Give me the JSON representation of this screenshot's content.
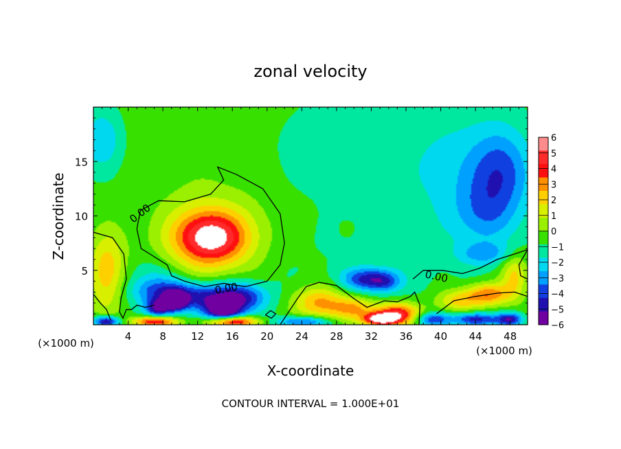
{
  "chart_data": {
    "type": "heatmap",
    "title": "zonal velocity",
    "xlabel": "X-coordinate",
    "ylabel": "Z-coordinate",
    "x_unit_left": "(×1000 m)",
    "x_unit_right": "(×1000 m)",
    "footer": "CONTOUR INTERVAL = 1.000E+01",
    "xlim": [
      0,
      50
    ],
    "ylim": [
      0,
      20
    ],
    "x_ticks": [
      4,
      8,
      12,
      16,
      20,
      24,
      28,
      32,
      36,
      40,
      44,
      48
    ],
    "x_tick_labels": [
      "4",
      "8",
      "12",
      "16",
      "20",
      "24",
      "28",
      "32",
      "36",
      "40",
      "44",
      "48"
    ],
    "y_ticks": [
      5,
      10,
      15
    ],
    "y_tick_labels": [
      "5",
      "10",
      "15"
    ],
    "colorbar": {
      "levels": [
        6,
        5,
        4,
        3,
        2,
        1,
        0,
        -1,
        -2,
        -3,
        -4,
        -5,
        -6
      ],
      "labels": [
        "6",
        "5",
        "4",
        "3",
        "2",
        "1",
        "0",
        "−1",
        "−2",
        "−3",
        "−4",
        "−5",
        "−6"
      ],
      "colors": [
        "#ff8c8c",
        "#ff2a2a",
        "#ff1010",
        "#ff9000",
        "#ffd000",
        "#d8f000",
        "#9af000",
        "#38e000",
        "#00e8a0",
        "#00d8f0",
        "#00a0ff",
        "#1040e0",
        "#2010b0",
        "#7000a0"
      ]
    },
    "contour_labels": [
      {
        "text": "0.00",
        "x": 5.4,
        "z": 10.2,
        "angle": -38
      },
      {
        "text": "0.00",
        "x": 15.3,
        "z": 3.3,
        "angle": -10
      },
      {
        "text": "0.00",
        "x": 39.5,
        "z": 4.4,
        "angle": 12
      }
    ],
    "contours": [
      {
        "points": [
          [
            0,
            8.5
          ],
          [
            2.2,
            8
          ],
          [
            3.5,
            6.5
          ],
          [
            3.8,
            4.2
          ],
          [
            3.2,
            2.5
          ],
          [
            3,
            1.2
          ],
          [
            3.4,
            0.6
          ],
          [
            3.8,
            1.4
          ],
          [
            4.4,
            1.4
          ],
          [
            5,
            1.8
          ],
          [
            6,
            1.6
          ],
          [
            7,
            1.8
          ]
        ]
      },
      {
        "points": [
          [
            0,
            2.8
          ],
          [
            0.8,
            2
          ],
          [
            1.5,
            1.4
          ],
          [
            2,
            0.4
          ]
        ]
      },
      {
        "points": [
          [
            5,
            8.8
          ],
          [
            5.4,
            10.5
          ],
          [
            7.5,
            11.4
          ],
          [
            10.5,
            11.3
          ],
          [
            13.5,
            12
          ],
          [
            15,
            13.3
          ],
          [
            14.3,
            14.5
          ],
          [
            16.5,
            13.8
          ],
          [
            19.5,
            12.5
          ],
          [
            21.5,
            10.2
          ],
          [
            22,
            7.5
          ],
          [
            21.5,
            5.5
          ],
          [
            20,
            4
          ],
          [
            17.5,
            3.5
          ],
          [
            15,
            3.8
          ],
          [
            12.8,
            3.5
          ],
          [
            10.5,
            4
          ],
          [
            9,
            4.5
          ],
          [
            8.5,
            5.5
          ],
          [
            7.5,
            6
          ],
          [
            6.5,
            6.5
          ],
          [
            5.5,
            7
          ],
          [
            5,
            8.8
          ]
        ]
      },
      {
        "points": [
          [
            21.5,
            0
          ],
          [
            22.5,
            1.2
          ],
          [
            23.5,
            2.4
          ],
          [
            24.5,
            3.5
          ],
          [
            26,
            3.9
          ],
          [
            28,
            3.6
          ],
          [
            30,
            2.4
          ],
          [
            31.5,
            1.6
          ],
          [
            33.5,
            2.2
          ],
          [
            35,
            2.1
          ],
          [
            36.5,
            2.6
          ],
          [
            37,
            3
          ],
          [
            37.6,
            1.8
          ],
          [
            37.5,
            0
          ]
        ]
      },
      {
        "points": [
          [
            36.8,
            4.2
          ],
          [
            38,
            5
          ],
          [
            40.2,
            5
          ],
          [
            42.5,
            4.7
          ],
          [
            44.5,
            5.2
          ],
          [
            46.5,
            6
          ],
          [
            48.5,
            6.5
          ],
          [
            50,
            6.9
          ]
        ]
      },
      {
        "points": [
          [
            50,
            6.9
          ],
          [
            49,
            5.5
          ],
          [
            49.2,
            4.5
          ],
          [
            50,
            4.2
          ]
        ]
      },
      {
        "points": [
          [
            39.5,
            1
          ],
          [
            41.5,
            2.2
          ],
          [
            44,
            2.6
          ],
          [
            46.5,
            2.9
          ],
          [
            48.5,
            3
          ],
          [
            50,
            2.6
          ]
        ]
      },
      {
        "points": [
          [
            19.8,
            0.9
          ],
          [
            20.4,
            1.3
          ],
          [
            21,
            1
          ],
          [
            20.5,
            0.6
          ],
          [
            19.8,
            0.9
          ]
        ]
      }
    ],
    "field_blobs": [
      {
        "x": 25,
        "z": 11,
        "rx": 50,
        "rz": 20,
        "v": -1.1
      },
      {
        "x": 10,
        "z": 17,
        "rx": 14,
        "rz": 5,
        "v": 0.6
      },
      {
        "x": 16,
        "z": 12,
        "rx": 12,
        "rz": 5,
        "v": 0.5
      },
      {
        "x": 1,
        "z": 17,
        "rx": 2.5,
        "rz": 3,
        "v": -2.5
      },
      {
        "x": 28,
        "z": 16,
        "rx": 8,
        "rz": 4,
        "v": -1
      },
      {
        "x": 42,
        "z": 14,
        "rx": 6,
        "rz": 6,
        "v": -1.4
      },
      {
        "x": 47,
        "z": 14,
        "rx": 3.5,
        "rz": 4,
        "v": -3.2
      },
      {
        "x": 45,
        "z": 10,
        "rx": 3.5,
        "rz": 3,
        "v": -1.8
      },
      {
        "x": 34,
        "z": 5,
        "rx": 6,
        "rz": 3,
        "v": -0.3
      },
      {
        "x": 13.5,
        "z": 8,
        "rx": 5,
        "rz": 3,
        "v": 6
      },
      {
        "x": 13.5,
        "z": 8,
        "rx": 3.5,
        "rz": 2,
        "v": 2
      },
      {
        "x": 1.5,
        "z": 4.5,
        "rx": 2,
        "rz": 3.5,
        "v": 3
      },
      {
        "x": 2,
        "z": 6.5,
        "rx": 2.5,
        "rz": 3,
        "v": 0.8
      },
      {
        "x": 6.5,
        "z": 4.5,
        "rx": 3,
        "rz": 1.8,
        "v": -1
      },
      {
        "x": 8,
        "z": 3,
        "rx": 3.5,
        "rz": 1.3,
        "v": -3.5
      },
      {
        "x": 13,
        "z": 2.5,
        "rx": 4,
        "rz": 1.3,
        "v": -4
      },
      {
        "x": 17,
        "z": 2.5,
        "rx": 3,
        "rz": 1.3,
        "v": -4
      },
      {
        "x": 9.5,
        "z": 2.2,
        "rx": 1.2,
        "rz": 0.8,
        "v": -7
      },
      {
        "x": 7.5,
        "z": 1.5,
        "rx": 1.5,
        "rz": 0.8,
        "v": -5
      },
      {
        "x": 15,
        "z": 1.2,
        "rx": 2,
        "rz": 1,
        "v": -6
      },
      {
        "x": 16,
        "z": 0.3,
        "rx": 3,
        "rz": 0.5,
        "v": 7
      },
      {
        "x": 7,
        "z": 0.3,
        "rx": 2.5,
        "rz": 0.5,
        "v": 6
      },
      {
        "x": 1.5,
        "z": 0.3,
        "rx": 1.5,
        "rz": 0.5,
        "v": -6
      },
      {
        "x": 26,
        "z": 2,
        "rx": 3,
        "rz": 1.5,
        "v": 4
      },
      {
        "x": 31,
        "z": 4.2,
        "rx": 2.5,
        "rz": 1,
        "v": -3.5
      },
      {
        "x": 33.5,
        "z": 4,
        "rx": 2,
        "rz": 1,
        "v": -3.5
      },
      {
        "x": 30,
        "z": 1.5,
        "rx": 2.5,
        "rz": 1,
        "v": 3.5
      },
      {
        "x": 35,
        "z": 1,
        "rx": 2.5,
        "rz": 1,
        "v": 6
      },
      {
        "x": 33,
        "z": 0.5,
        "rx": 2,
        "rz": 0.6,
        "v": 7
      },
      {
        "x": 24,
        "z": 0.3,
        "rx": 3,
        "rz": 0.5,
        "v": -4
      },
      {
        "x": 39,
        "z": 0.5,
        "rx": 2,
        "rz": 0.6,
        "v": -4
      },
      {
        "x": 42,
        "z": 2.2,
        "rx": 2.5,
        "rz": 1,
        "v": 3
      },
      {
        "x": 45.5,
        "z": 2.8,
        "rx": 2.5,
        "rz": 1,
        "v": 4.5
      },
      {
        "x": 48.5,
        "z": 4.5,
        "rx": 1.5,
        "rz": 2,
        "v": 3
      },
      {
        "x": 44,
        "z": 0.5,
        "rx": 2.5,
        "rz": 0.6,
        "v": -5
      },
      {
        "x": 48,
        "z": 0.5,
        "rx": 1.5,
        "rz": 0.6,
        "v": -5
      },
      {
        "x": 45,
        "z": 6.5,
        "rx": 3,
        "rz": 1,
        "v": -2.2
      }
    ]
  }
}
